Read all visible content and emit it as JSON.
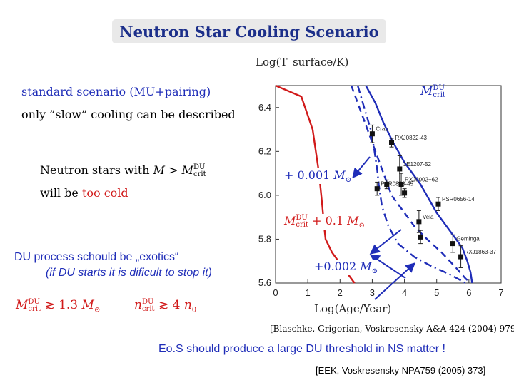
{
  "title": "Neutron Star Cooling Scenario",
  "left_panel": {
    "line1": "standard scenario (MU+pairing)",
    "line2": "only ”slow” cooling can be described",
    "ns_text_prefix": "Neutron stars with",
    "ns_math_M": "M",
    "ns_math_gt": ">",
    "ns_math_M2": "M",
    "ns_math_sup": "DU",
    "ns_math_sub": "crit",
    "will_be": "will be",
    "too_cold": "too cold",
    "du_process": "DU process schould be „exotics“",
    "du_note": "(if DU starts it is dificult to stop it)",
    "cond1_M": "M",
    "cond1_sup": "DU",
    "cond1_sub": "crit",
    "cond1_rel": "≳ 1.3",
    "cond1_unit": "M",
    "cond1_unit_sub": "⊙",
    "cond2_n": "n",
    "cond2_sup": "DU",
    "cond2_sub": "crit",
    "cond2_rel": "≳ 4",
    "cond2_unit": "n",
    "cond2_unit_sub": "0"
  },
  "chart_data": {
    "type": "line",
    "xlabel": "Log(Age/Year)",
    "ylabel": "Log(T_surface/K)",
    "xlim": [
      0,
      7
    ],
    "ylim": [
      5.6,
      6.5
    ],
    "x_ticks": [
      "0",
      "1",
      "2",
      "3",
      "4",
      "5",
      "6",
      "7"
    ],
    "y_ticks": [
      "6.4",
      "6.2",
      "6.0",
      "5.8",
      "5.6"
    ],
    "series": [
      {
        "style": "red-solid",
        "points": [
          [
            0,
            6.5
          ],
          [
            0.8,
            6.45
          ],
          [
            1.15,
            6.3
          ],
          [
            1.35,
            6.1
          ],
          [
            1.45,
            5.95
          ],
          [
            1.5,
            5.87
          ],
          [
            1.55,
            5.8
          ],
          [
            1.75,
            5.74
          ],
          [
            2.1,
            5.67
          ],
          [
            2.45,
            5.6
          ]
        ]
      },
      {
        "style": "blue-solid",
        "points": [
          [
            2.8,
            6.5
          ],
          [
            3.1,
            6.42
          ],
          [
            3.35,
            6.33
          ],
          [
            3.65,
            6.24
          ],
          [
            4.0,
            6.15
          ],
          [
            4.5,
            6.05
          ],
          [
            5.0,
            5.92
          ],
          [
            5.5,
            5.82
          ],
          [
            5.8,
            5.76
          ],
          [
            5.95,
            5.7
          ],
          [
            6.05,
            5.65
          ],
          [
            6.1,
            5.6
          ]
        ]
      },
      {
        "style": "blue-dashed",
        "points": [
          [
            2.35,
            6.5
          ],
          [
            2.6,
            6.4
          ],
          [
            2.85,
            6.3
          ],
          [
            3.1,
            6.2
          ],
          [
            3.35,
            6.1
          ],
          [
            3.6,
            6.0
          ],
          [
            3.95,
            5.93
          ],
          [
            4.3,
            5.86
          ],
          [
            4.7,
            5.8
          ],
          [
            5.15,
            5.74
          ],
          [
            5.6,
            5.67
          ],
          [
            5.9,
            5.62
          ],
          [
            6.05,
            5.6
          ]
        ]
      },
      {
        "style": "blue-dashdot",
        "points": [
          [
            2.55,
            6.5
          ],
          [
            2.75,
            6.4
          ],
          [
            2.95,
            6.3
          ],
          [
            3.05,
            6.22
          ],
          [
            3.15,
            6.12
          ],
          [
            3.2,
            6.05
          ],
          [
            3.3,
            5.95
          ],
          [
            3.5,
            5.86
          ],
          [
            3.8,
            5.78
          ],
          [
            4.3,
            5.72
          ],
          [
            4.8,
            5.68
          ],
          [
            5.4,
            5.64
          ],
          [
            5.9,
            5.6
          ]
        ]
      }
    ],
    "observations": [
      {
        "name": "Crab",
        "x": 3.0,
        "y": 6.28,
        "yerr": 0.04
      },
      {
        "name": "RXJ0822-43",
        "x": 3.6,
        "y": 6.24,
        "yerr": 0.02
      },
      {
        "name": "1E1207-52",
        "x": 3.85,
        "y": 6.12,
        "yerr": 0.06
      },
      {
        "name": "PSR0833-45",
        "x": 3.15,
        "y": 6.03,
        "yerr": 0.03
      },
      {
        "name": "RXJ0002+62",
        "x": 3.9,
        "y": 6.05,
        "yerr": 0.05
      },
      {
        "name": "",
        "x": 3.45,
        "y": 6.05,
        "yerr": 0.02
      },
      {
        "name": "",
        "x": 4.0,
        "y": 6.01,
        "yerr": 0.02
      },
      {
        "name": "PSR0656-14",
        "x": 5.05,
        "y": 5.96,
        "yerr": 0.03
      },
      {
        "name": "Vela",
        "x": 4.45,
        "y": 5.88,
        "yerr": 0.05
      },
      {
        "name": "",
        "x": 4.5,
        "y": 5.81,
        "yerr": 0.03
      },
      {
        "name": "Geminga",
        "x": 5.5,
        "y": 5.78,
        "yerr": 0.04
      },
      {
        "name": "RXJ1863-37",
        "x": 5.75,
        "y": 5.72,
        "yerr": 0.05
      }
    ],
    "annotations": {
      "mdu_top": {
        "M": "M",
        "sup": "DU",
        "sub": "crit"
      },
      "plus_001": {
        "prefix": "+ 0.001",
        "M": "M",
        "sub": "⊙"
      },
      "mdu_plus_01": {
        "M": "M",
        "sup": "DU",
        "sub": "crit",
        "rest": "+ 0.1",
        "M2": "M",
        "sub2": "⊙"
      },
      "plus_0002": {
        "prefix": "+0.002",
        "M": "M",
        "sub": "⊙"
      }
    }
  },
  "footer": {
    "ref1": "[Blaschke, Grigorian, Voskresensky A&A 424 (2004) 979]",
    "threshold": "Eo.S should produce a large DU threshold in NS matter !",
    "ref2": "[EEK, Voskresensky NPA759 (2005) 373]"
  },
  "colors": {
    "title": "#1c2f8a",
    "accent_blue": "#1f2db8",
    "red": "#d11a1a"
  }
}
